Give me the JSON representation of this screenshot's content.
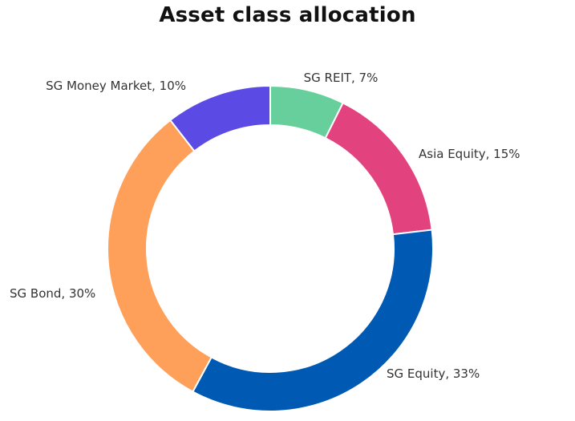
{
  "chart_data": {
    "type": "pie",
    "style": "donut",
    "title": "Asset class allocation",
    "slices": [
      {
        "label": "SG REIT",
        "value": 7,
        "label_text": "SG REIT, 7%",
        "color": "#66CF9B"
      },
      {
        "label": "Asia Equity",
        "value": 15,
        "label_text": "Asia Equity, 15%",
        "color": "#E2437E"
      },
      {
        "label": "SG Equity",
        "value": 33,
        "label_text": "SG Equity, 33%",
        "color": "#0059B3"
      },
      {
        "label": "SG Bond",
        "value": 30,
        "label_text": "SG Bond, 30%",
        "color": "#FFA05A"
      },
      {
        "label": "SG Money Market",
        "value": 10,
        "label_text": "SG Money Market, 10%",
        "color": "#5B4AE4"
      }
    ],
    "legend": "none",
    "grid": false
  }
}
